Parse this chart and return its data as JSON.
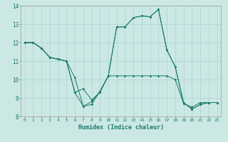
{
  "xlabel": "Humidex (Indice chaleur)",
  "background_color": "#cce8e4",
  "line_color": "#1a7a6e",
  "grid_color": "#aad4d0",
  "xlim": [
    -0.5,
    23.5
  ],
  "ylim": [
    8,
    14
  ],
  "yticks": [
    8,
    9,
    10,
    11,
    12,
    13,
    14
  ],
  "xticks": [
    0,
    1,
    2,
    3,
    4,
    5,
    6,
    7,
    8,
    9,
    10,
    11,
    12,
    13,
    14,
    15,
    16,
    17,
    18,
    19,
    20,
    21,
    22,
    23
  ],
  "series1_x": [
    0,
    1,
    2,
    3,
    4,
    5,
    6,
    7,
    8,
    9,
    10,
    11,
    12,
    13,
    14,
    15,
    16,
    17,
    18,
    19,
    20,
    21,
    22,
    23
  ],
  "series1_y": [
    12.0,
    12.0,
    11.7,
    11.2,
    11.1,
    11.0,
    10.1,
    8.55,
    8.8,
    9.35,
    10.2,
    10.2,
    10.2,
    10.2,
    10.2,
    10.2,
    10.2,
    10.2,
    10.0,
    8.7,
    8.5,
    8.75,
    8.75,
    8.75
  ],
  "series2_x": [
    0,
    1,
    2,
    3,
    4,
    5,
    6,
    7,
    8,
    9,
    10,
    11,
    12,
    13,
    14,
    15,
    16,
    17,
    18,
    19,
    20,
    21,
    22,
    23
  ],
  "series2_y": [
    12.0,
    12.0,
    11.7,
    11.2,
    11.1,
    11.0,
    9.3,
    9.5,
    8.9,
    9.3,
    10.2,
    12.85,
    12.85,
    13.35,
    13.45,
    13.4,
    13.8,
    11.6,
    10.7,
    8.75,
    8.4,
    8.65,
    8.75,
    8.75
  ],
  "series3_x": [
    0,
    1,
    2,
    3,
    4,
    5,
    6,
    7,
    8,
    9,
    10,
    11,
    12,
    13,
    14,
    15,
    16,
    17,
    18,
    19,
    20,
    21,
    22,
    23
  ],
  "series3_y": [
    12.0,
    12.0,
    11.7,
    11.2,
    11.1,
    11.0,
    9.3,
    8.55,
    8.65,
    9.35,
    10.2,
    12.85,
    12.85,
    13.35,
    13.45,
    13.4,
    13.8,
    11.6,
    10.7,
    8.75,
    8.4,
    8.65,
    8.75,
    8.75
  ]
}
